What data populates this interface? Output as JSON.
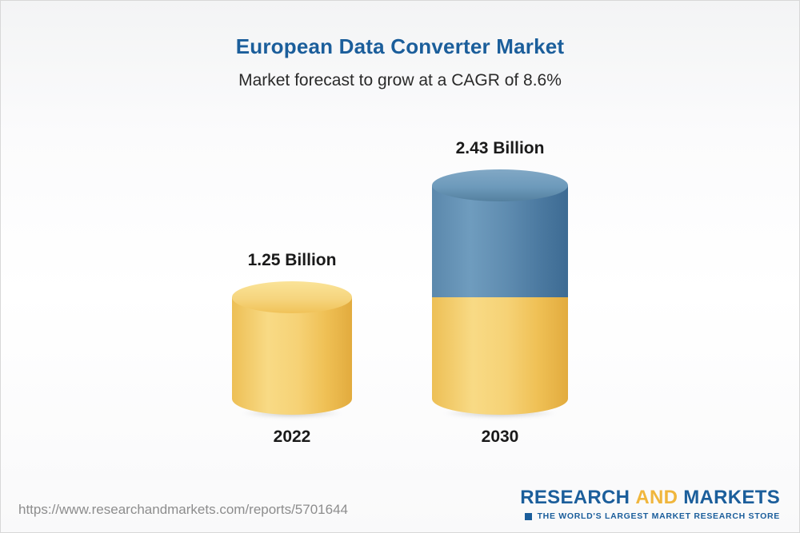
{
  "header": {
    "title": "European Data Converter Market",
    "subtitle": "Market forecast to grow at a CAGR of 8.6%"
  },
  "chart_data": {
    "type": "bar",
    "title": "European Data Converter Market",
    "subtitle": "Market forecast to grow at a CAGR of 8.6%",
    "categories": [
      "2022",
      "2030"
    ],
    "values": [
      1.25,
      2.43
    ],
    "unit": "Billion",
    "value_labels": [
      "1.25 Billion",
      "2.43 Billion"
    ],
    "cagr": "8.6%",
    "ylim": [
      0,
      2.6
    ],
    "legend": "none",
    "grid": "off",
    "bar_style": "3d-cylinder",
    "bar_colors": [
      "#f2c75f",
      "#4d7fa8"
    ],
    "note": "2030 cylinder is stacked: lower yellow segment equals the 2022 value (1.25), upper blue segment is the growth to 2.43"
  },
  "footer": {
    "url": "https://www.researchandmarkets.com/reports/5701644",
    "logo": {
      "part1": "RESEARCH",
      "part2": "AND",
      "part3": "MARKETS",
      "tagline": "THE WORLD'S LARGEST MARKET RESEARCH STORE"
    }
  },
  "colors": {
    "title_blue": "#1b5e9b",
    "logo_yellow": "#f0b63c",
    "bar_yellow": "#f2c75f",
    "bar_blue": "#4d7fa8"
  }
}
